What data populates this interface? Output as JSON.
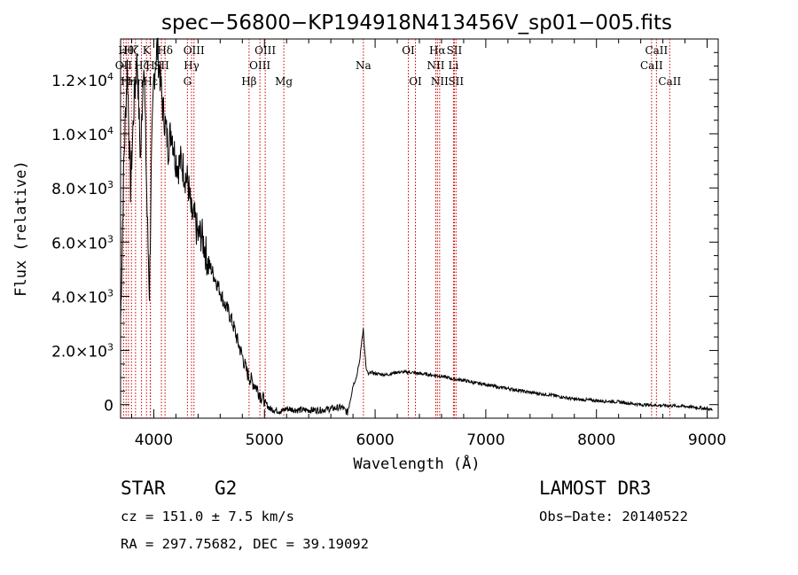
{
  "chart_data": {
    "type": "line",
    "title": "spec−56800−KP194918N413456V_sp01−005.fits",
    "xlabel": "Wavelength (Å)",
    "ylabel": "Flux (relative)",
    "xlim": [
      3700,
      9100
    ],
    "ylim": [
      -500,
      13500
    ],
    "x_ticks": [
      {
        "value": 4000,
        "label": "4000"
      },
      {
        "value": 5000,
        "label": "5000"
      },
      {
        "value": 6000,
        "label": "6000"
      },
      {
        "value": 7000,
        "label": "7000"
      },
      {
        "value": 8000,
        "label": "8000"
      },
      {
        "value": 9000,
        "label": "9000"
      }
    ],
    "y_ticks": [
      {
        "value": 0,
        "mant": "0",
        "exp": ""
      },
      {
        "value": 2000,
        "mant": "2.0×10",
        "exp": "3"
      },
      {
        "value": 4000,
        "mant": "4.0×10",
        "exp": "3"
      },
      {
        "value": 6000,
        "mant": "6.0×10",
        "exp": "3"
      },
      {
        "value": 8000,
        "mant": "8.0×10",
        "exp": "3"
      },
      {
        "value": 10000,
        "mant": "1.0×10",
        "exp": "4"
      },
      {
        "value": 12000,
        "mant": "1.2×10",
        "exp": "4"
      }
    ],
    "line_color": "#000000",
    "marker_color": "#cc0000",
    "spectrum": {
      "wavelength": [
        3700,
        3730,
        3760,
        3790,
        3820,
        3850,
        3880,
        3910,
        3940,
        3960,
        3980,
        4000,
        4030,
        4060,
        4080,
        4100,
        4130,
        4160,
        4190,
        4220,
        4250,
        4280,
        4310,
        4340,
        4370,
        4400,
        4430,
        4460,
        4490,
        4520,
        4560,
        4600,
        4640,
        4680,
        4720,
        4760,
        4800,
        4840,
        4880,
        4920,
        4960,
        5000,
        5050,
        5100,
        5150,
        5200,
        5300,
        5400,
        5500,
        5600,
        5700,
        5750,
        5780,
        5800,
        5830,
        5860,
        5880,
        5893,
        5905,
        5920,
        5940,
        5960,
        6000,
        6100,
        6200,
        6300,
        6400,
        6500,
        6600,
        6700,
        6800,
        6900,
        7000,
        7100,
        7200,
        7400,
        7600,
        7800,
        8000,
        8200,
        8400,
        8600,
        8800,
        9000,
        9050
      ],
      "flux": [
        3000,
        9000,
        12500,
        8000,
        11000,
        12800,
        9000,
        13000,
        7000,
        4200,
        9000,
        12000,
        13200,
        12000,
        11000,
        10500,
        9500,
        10200,
        9200,
        8800,
        9000,
        8500,
        8200,
        7000,
        6800,
        6200,
        6300,
        5800,
        5200,
        5000,
        4600,
        4200,
        3700,
        3400,
        2900,
        2300,
        1800,
        1200,
        900,
        700,
        400,
        100,
        -150,
        -200,
        -250,
        -150,
        -200,
        -200,
        -200,
        -150,
        -100,
        -300,
        300,
        700,
        1000,
        1600,
        2400,
        2800,
        2000,
        1300,
        1100,
        1200,
        1150,
        1100,
        1200,
        1200,
        1150,
        1100,
        1050,
        950,
        900,
        800,
        750,
        650,
        600,
        450,
        350,
        200,
        150,
        100,
        0,
        -30,
        -60,
        -150,
        -200
      ]
    },
    "line_markers": [
      {
        "x": 3727,
        "label": "OII",
        "row": 2
      },
      {
        "x": 3750,
        "label": "Hθ",
        "row": 1
      },
      {
        "x": 3771,
        "label": "Hη",
        "row": 3
      },
      {
        "x": 3798,
        "label": "Hζ",
        "row": 1
      },
      {
        "x": 3835,
        "label": "Hη",
        "row": 3
      },
      {
        "x": 3889,
        "label": "Hζ",
        "row": 2
      },
      {
        "x": 3934,
        "label": "K",
        "row": 1
      },
      {
        "x": 3968,
        "label": "H",
        "row": 2
      },
      {
        "x": 3970,
        "label": "Hε",
        "row": 3
      },
      {
        "x": 4069,
        "label": "SII",
        "row": 2
      },
      {
        "x": 4102,
        "label": "Hδ",
        "row": 1
      },
      {
        "x": 4304,
        "label": "G",
        "row": 3
      },
      {
        "x": 4341,
        "label": "Hγ",
        "row": 2
      },
      {
        "x": 4363,
        "label": "OIII",
        "row": 1
      },
      {
        "x": 4861,
        "label": "Hβ",
        "row": 3
      },
      {
        "x": 4959,
        "label": "OIII",
        "row": 2
      },
      {
        "x": 5007,
        "label": "OIII",
        "row": 1
      },
      {
        "x": 5175,
        "label": "Mg",
        "row": 3
      },
      {
        "x": 5894,
        "label": "Na",
        "row": 2
      },
      {
        "x": 6300,
        "label": "OI",
        "row": 1
      },
      {
        "x": 6364,
        "label": "OI",
        "row": 3
      },
      {
        "x": 6548,
        "label": "NII",
        "row": 2
      },
      {
        "x": 6563,
        "label": "Hα",
        "row": 1
      },
      {
        "x": 6583,
        "label": "NII",
        "row": 3
      },
      {
        "x": 6708,
        "label": "Li",
        "row": 2
      },
      {
        "x": 6716,
        "label": "SII",
        "row": 1
      },
      {
        "x": 6731,
        "label": "SII",
        "row": 3
      },
      {
        "x": 8498,
        "label": "CaII",
        "row": 2
      },
      {
        "x": 8542,
        "label": "CaII",
        "row": 1
      },
      {
        "x": 8662,
        "label": "CaII",
        "row": 3
      }
    ]
  },
  "info": {
    "object_class": "STAR",
    "subclass": "G2",
    "survey": "LAMOST DR3",
    "cz": "cz = 151.0 ± 7.5 km/s",
    "obs_date": "Obs−Date: 20140522",
    "coords": "RA = 297.75682, DEC =  39.19092"
  }
}
